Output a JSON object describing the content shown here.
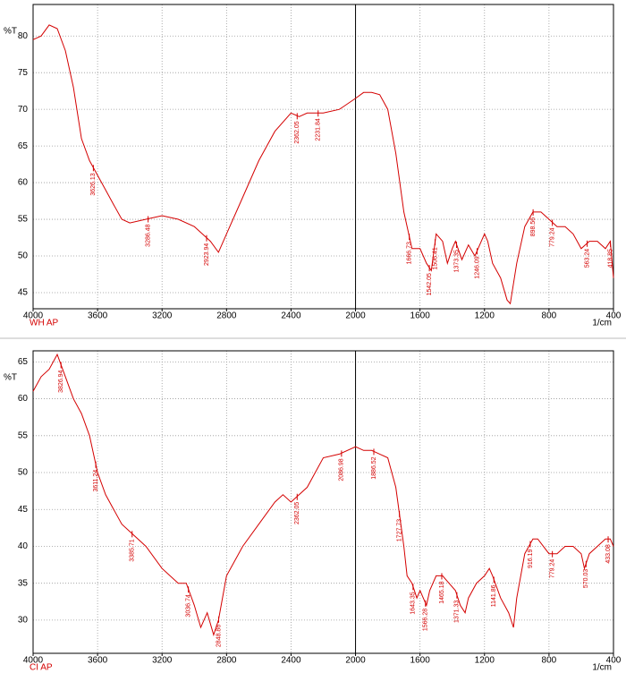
{
  "chart_data": [
    {
      "type": "line",
      "ylabel": "%T",
      "xlabel": "1/cm",
      "sample": "WH AP",
      "color": "#d40000",
      "xlim": [
        4000,
        400
      ],
      "xticks": [
        4000,
        3600,
        3200,
        2800,
        2400,
        2000,
        1600,
        1200,
        800,
        400
      ],
      "ylim": [
        42.8,
        84.3
      ],
      "yticks": [
        45,
        50,
        55,
        60,
        65,
        70,
        75,
        80
      ],
      "grid": true,
      "marker_line": 2000,
      "x": [
        4000,
        3950,
        3900,
        3850,
        3800,
        3750,
        3700,
        3650,
        3600,
        3550,
        3500,
        3450,
        3400,
        3300,
        3200,
        3100,
        3000,
        2950,
        2900,
        2850,
        2800,
        2700,
        2600,
        2500,
        2400,
        2350,
        2300,
        2200,
        2100,
        2000,
        1950,
        1900,
        1850,
        1800,
        1750,
        1700,
        1650,
        1600,
        1560,
        1530,
        1500,
        1460,
        1430,
        1400,
        1380,
        1340,
        1300,
        1260,
        1220,
        1200,
        1180,
        1150,
        1100,
        1060,
        1040,
        1000,
        950,
        900,
        850,
        800,
        750,
        700,
        650,
        600,
        550,
        500,
        450,
        420,
        400
      ],
      "values": [
        79.5,
        80,
        81.5,
        81,
        78,
        73,
        66,
        63,
        61,
        59,
        57,
        55,
        54.5,
        55,
        55.5,
        55,
        54,
        53,
        52,
        50.5,
        53,
        58,
        63,
        67,
        69.5,
        69,
        69.5,
        69.5,
        70,
        71.5,
        72.3,
        72.3,
        72,
        70,
        64,
        56,
        51,
        51,
        49,
        48,
        53,
        52,
        49,
        51,
        52,
        49.5,
        51.5,
        50,
        52,
        53,
        52,
        49,
        47,
        44,
        43.5,
        49,
        54,
        56,
        56,
        55,
        54,
        54,
        53,
        51,
        52,
        52,
        51,
        52,
        47
      ],
      "peaks": [
        3626.13,
        3286.48,
        2923.94,
        2362.05,
        2231.84,
        1666.73,
        1542.05,
        1506.41,
        1373.35,
        1246.09,
        898.56,
        779.24,
        563.24,
        418.85
      ]
    },
    {
      "type": "line",
      "ylabel": "%T",
      "xlabel": "1/cm",
      "sample": "CI AP",
      "color": "#d40000",
      "xlim": [
        4000,
        400
      ],
      "xticks": [
        4000,
        3600,
        3200,
        2800,
        2400,
        2000,
        1600,
        1200,
        800,
        400
      ],
      "ylim": [
        25.5,
        66.5
      ],
      "yticks": [
        30,
        35,
        40,
        45,
        50,
        55,
        60,
        65
      ],
      "grid": true,
      "marker_line": 2000,
      "x": [
        4000,
        3950,
        3900,
        3850,
        3800,
        3750,
        3700,
        3650,
        3600,
        3550,
        3500,
        3450,
        3400,
        3300,
        3200,
        3100,
        3050,
        3000,
        2960,
        2920,
        2880,
        2850,
        2800,
        2700,
        2600,
        2500,
        2450,
        2400,
        2300,
        2200,
        2100,
        2000,
        1950,
        1900,
        1850,
        1800,
        1750,
        1700,
        1680,
        1650,
        1620,
        1600,
        1560,
        1540,
        1500,
        1460,
        1420,
        1380,
        1350,
        1320,
        1300,
        1250,
        1200,
        1170,
        1150,
        1100,
        1050,
        1020,
        1000,
        950,
        900,
        870,
        800,
        750,
        700,
        650,
        600,
        580,
        550,
        500,
        450,
        420,
        400
      ],
      "values": [
        61,
        63,
        64,
        66,
        63,
        60,
        58,
        55,
        50,
        47,
        45,
        43,
        42,
        40,
        37,
        35,
        35,
        32,
        29,
        31,
        28,
        30,
        36,
        40,
        43,
        46,
        47,
        46,
        48,
        52,
        52.5,
        53.5,
        53,
        53,
        52.5,
        52,
        48,
        40,
        36,
        35,
        33,
        34,
        32,
        34,
        36,
        36,
        35,
        34,
        32,
        31,
        33,
        35,
        36,
        37,
        36,
        33,
        31,
        29,
        33,
        39,
        41,
        41,
        39,
        39,
        40,
        40,
        39,
        37,
        39,
        40,
        41,
        41,
        40
      ],
      "peaks": [
        3826.94,
        3611.24,
        3385.71,
        3036.74,
        2848.86,
        2362.05,
        2086.98,
        1886.52,
        1727.73,
        1643.35,
        1566.28,
        1465.18,
        1371.33,
        1141.86,
        916.19,
        779.24,
        570.03,
        433.08
      ]
    }
  ]
}
